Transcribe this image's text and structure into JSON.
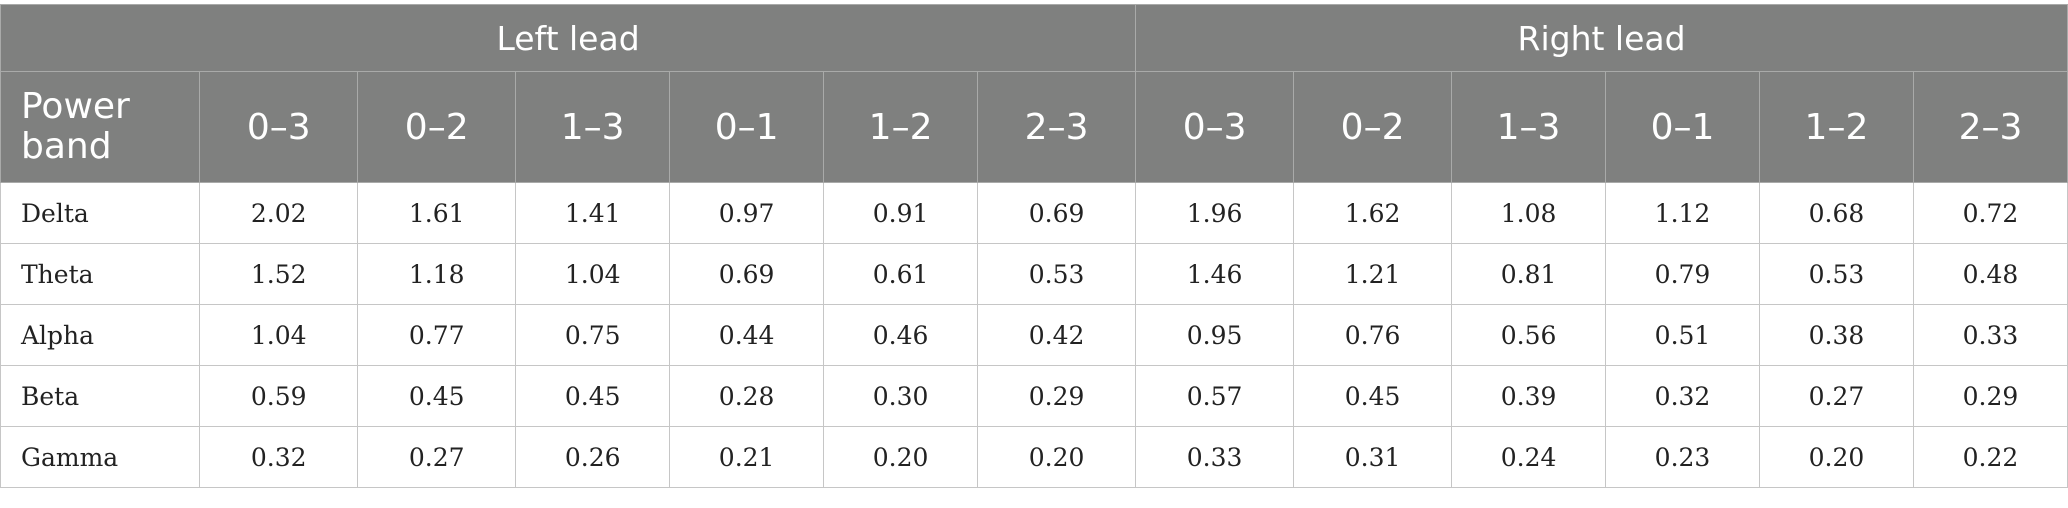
{
  "header": {
    "groups": [
      "Left lead",
      "Right lead"
    ],
    "first_column": "Power band",
    "subcolumns": [
      "0–3",
      "0–2",
      "1–3",
      "0–1",
      "1–2",
      "2–3",
      "0–3",
      "0–2",
      "1–3",
      "0–1",
      "1–2",
      "2–3"
    ]
  },
  "rows": [
    {
      "label": "Delta",
      "values": [
        "2.02",
        "1.61",
        "1.41",
        "0.97",
        "0.91",
        "0.69",
        "1.96",
        "1.62",
        "1.08",
        "1.12",
        "0.68",
        "0.72"
      ]
    },
    {
      "label": "Theta",
      "values": [
        "1.52",
        "1.18",
        "1.04",
        "0.69",
        "0.61",
        "0.53",
        "1.46",
        "1.21",
        "0.81",
        "0.79",
        "0.53",
        "0.48"
      ]
    },
    {
      "label": "Alpha",
      "values": [
        "1.04",
        "0.77",
        "0.75",
        "0.44",
        "0.46",
        "0.42",
        "0.95",
        "0.76",
        "0.56",
        "0.51",
        "0.38",
        "0.33"
      ]
    },
    {
      "label": "Beta",
      "values": [
        "0.59",
        "0.45",
        "0.45",
        "0.28",
        "0.30",
        "0.29",
        "0.57",
        "0.45",
        "0.39",
        "0.32",
        "0.27",
        "0.29"
      ]
    },
    {
      "label": "Gamma",
      "values": [
        "0.32",
        "0.27",
        "0.26",
        "0.21",
        "0.20",
        "0.20",
        "0.33",
        "0.31",
        "0.24",
        "0.23",
        "0.20",
        "0.22"
      ]
    }
  ]
}
